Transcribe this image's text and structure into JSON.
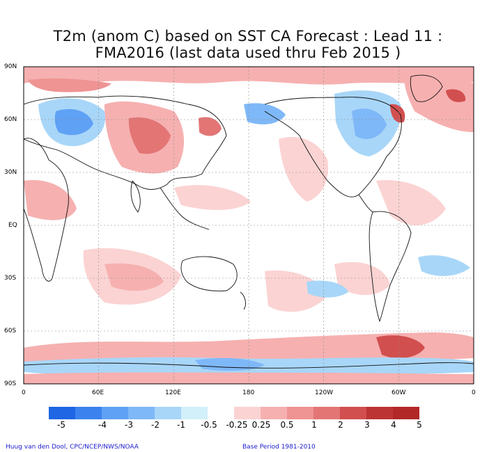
{
  "title": {
    "line1": "T2m (anom C) based on SST CA Forecast : Lead 11 :",
    "line2": "FMA2016 (last data used thru Feb 2015 )"
  },
  "axes": {
    "lat_labels": [
      "90N",
      "60N",
      "30N",
      "EQ",
      "30S",
      "60S",
      "90S"
    ],
    "lon_labels": [
      "0",
      "60E",
      "120E",
      "180",
      "120W",
      "60W",
      "0"
    ]
  },
  "colorbar": {
    "labels": [
      "-5",
      "-4",
      "-3",
      "-2",
      "-1",
      "-0.5",
      "-0.25",
      "0.25",
      "0.5",
      "1",
      "2",
      "3",
      "4",
      "5"
    ],
    "colors": [
      "#1f66e5",
      "#3c82ee",
      "#5fa1f5",
      "#7fb8f8",
      "#a8d6f8",
      "#d2f0fa",
      "#ffffff",
      "#fbd3d3",
      "#f6b0b0",
      "#ef9393",
      "#e37575",
      "#d24f4f",
      "#bd3434",
      "#b22828"
    ]
  },
  "footer": {
    "left": "Huug van den Dool, CPC/NCEP/NWS/NOAA",
    "right": "Base Period 1981-2010"
  }
}
